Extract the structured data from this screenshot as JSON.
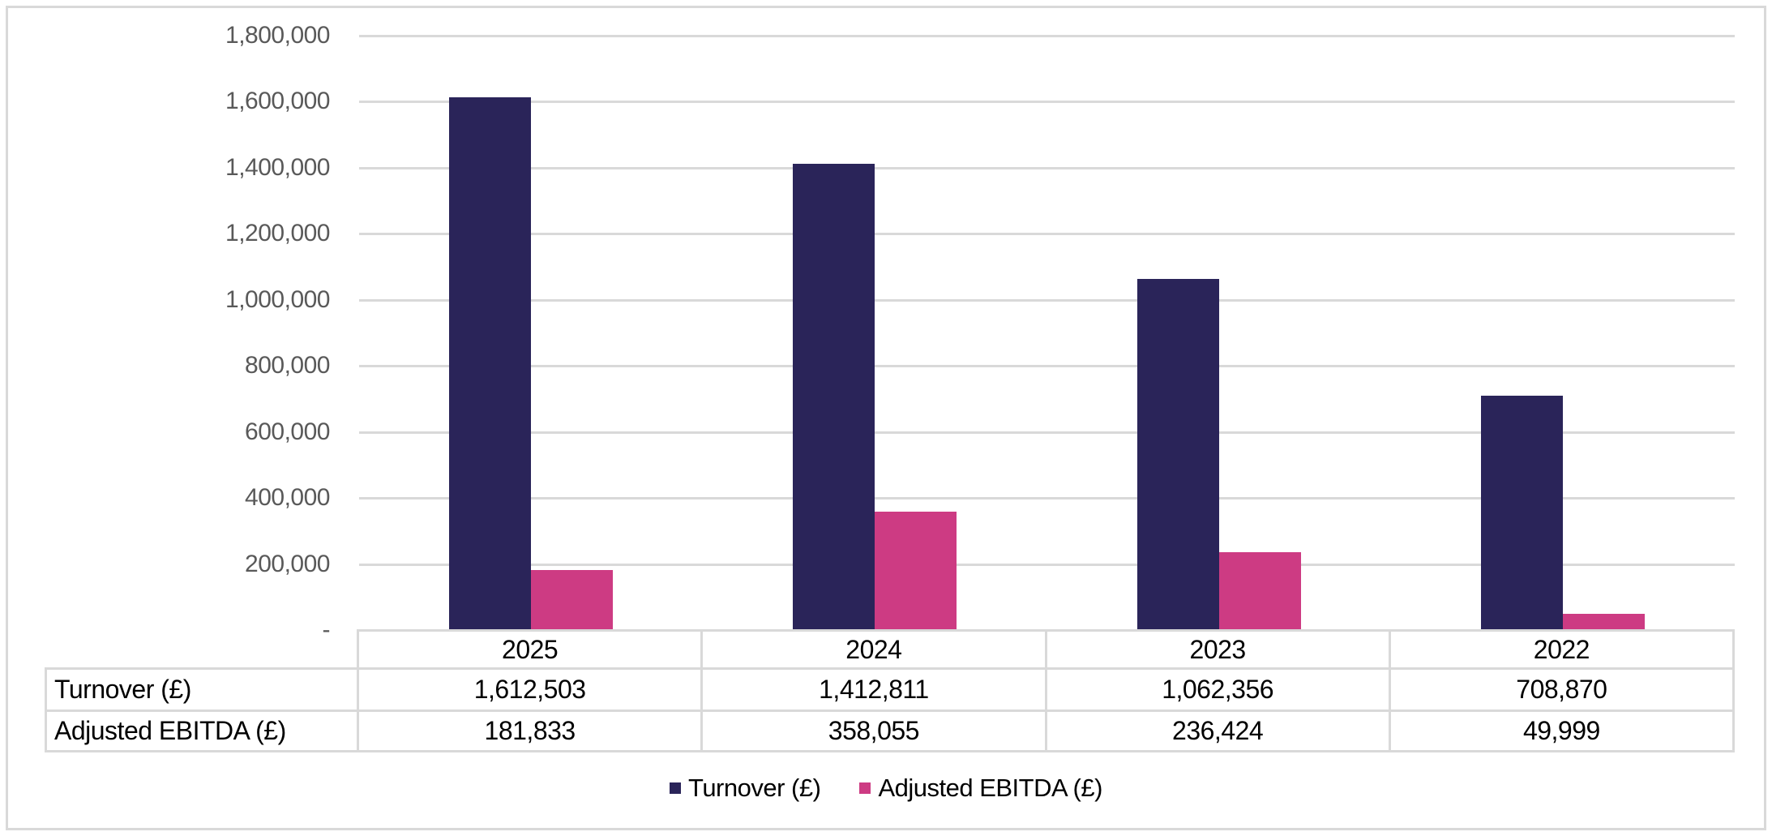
{
  "figure": {
    "background": "#FFFFFF",
    "border_color": "#D9D9D9"
  },
  "chart_data": {
    "type": "bar",
    "title": "",
    "xlabel": "",
    "ylabel": "",
    "categories": [
      "2025",
      "2024",
      "2023",
      "2022"
    ],
    "series": [
      {
        "name": "Turnover (£)",
        "color": "#2A2459",
        "values": [
          1612503,
          1412811,
          1062356,
          708870
        ],
        "formatted": [
          "1,612,503",
          "1,412,811",
          "1,062,356",
          "708,870"
        ]
      },
      {
        "name": "Adjusted EBITDA (£)",
        "color": "#CD3B83",
        "values": [
          181833,
          358055,
          236424,
          49999
        ],
        "formatted": [
          "181,833",
          "358,055",
          "236,424",
          "49,999"
        ]
      }
    ],
    "ylim": [
      0,
      1800000
    ],
    "ytick_step": 200000,
    "ytick_labels_top_to_bottom": [
      "1,800,000",
      "1,600,000",
      "1,400,000",
      "1,200,000",
      "1,000,000",
      "800,000",
      "600,000",
      "400,000",
      "200,000",
      "-"
    ],
    "grid": "horizontal",
    "gridline_color": "#D9D9D9",
    "axis_text_color": "#595959",
    "legend_position": "bottom",
    "data_table_shown": true
  }
}
